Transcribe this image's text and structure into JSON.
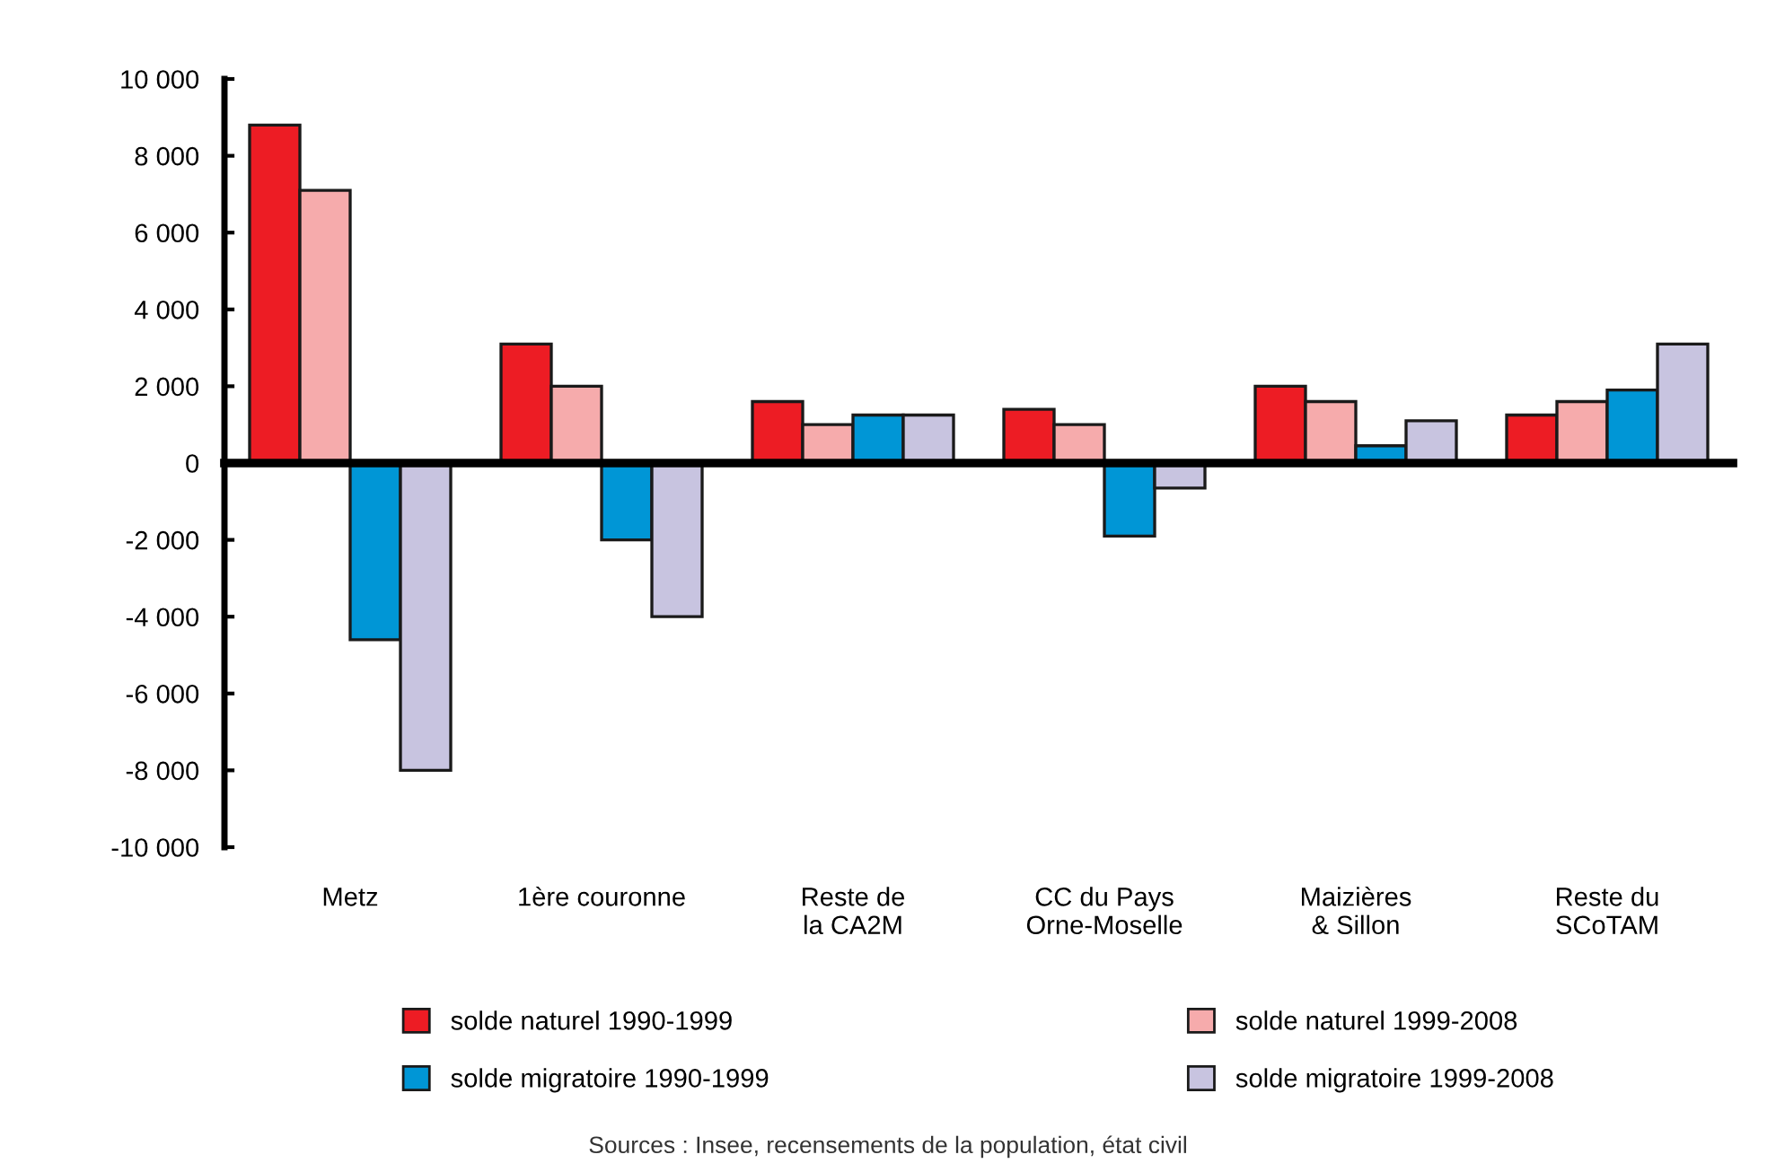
{
  "chart_data": {
    "type": "bar",
    "categories": [
      "Metz",
      "1ère couronne",
      "Reste de\nla CA2M",
      "CC du Pays\nOrne-Moselle",
      "Maizières\n& Sillon",
      "Reste du\nSCoTAM"
    ],
    "series": [
      {
        "name": "solde naturel 1990-1999",
        "color": "#ed1c24",
        "values": [
          8800,
          3100,
          1600,
          1400,
          2000,
          1250
        ]
      },
      {
        "name": "solde naturel 1999-2008",
        "color": "#f6abac",
        "values": [
          7100,
          2000,
          1000,
          1000,
          1600,
          1600
        ]
      },
      {
        "name": "solde migratoire 1990-1999",
        "color": "#0096d6",
        "values": [
          -4600,
          -2000,
          1250,
          -1900,
          450,
          1900
        ]
      },
      {
        "name": "solde migratoire 1999-2008",
        "color": "#c8c4e0",
        "values": [
          -8000,
          -4000,
          1250,
          -650,
          1100,
          3100
        ]
      }
    ],
    "ylim": [
      -10000,
      10000
    ],
    "yticks": [
      {
        "value": -10000,
        "label": "-10 000"
      },
      {
        "value": -8000,
        "label": "-8 000"
      },
      {
        "value": -6000,
        "label": "-6 000"
      },
      {
        "value": -4000,
        "label": "-4 000"
      },
      {
        "value": -2000,
        "label": "-2 000"
      },
      0,
      {
        "value": 2000,
        "label": "2 000"
      },
      {
        "value": 4000,
        "label": "4 000"
      },
      {
        "value": 6000,
        "label": "6 000"
      },
      {
        "value": 8000,
        "label": "8 000"
      },
      {
        "value": 10000,
        "label": "10 000"
      }
    ],
    "legend": "bottom",
    "annotations": [
      "Sources : Insee, recensements de la population, état civil"
    ]
  }
}
